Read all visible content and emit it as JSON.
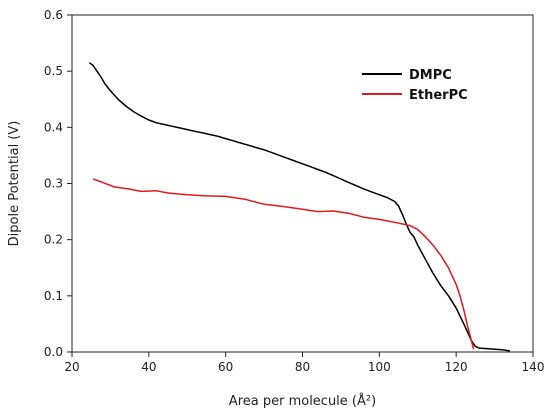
{
  "chart_data": {
    "type": "line",
    "xlabel": "Area per molecule (Å²)",
    "ylabel": "Dipole Potential (V)",
    "xlim": [
      20,
      140
    ],
    "ylim": [
      0,
      0.6
    ],
    "xticks": [
      20,
      40,
      60,
      80,
      100,
      120,
      140
    ],
    "yticks": [
      0.0,
      0.1,
      0.2,
      0.3,
      0.4,
      0.5,
      0.6
    ],
    "xtick_labels": [
      "20",
      "40",
      "60",
      "80",
      "100",
      "120",
      "140"
    ],
    "ytick_labels": [
      "0.0",
      "0.1",
      "0.2",
      "0.3",
      "0.4",
      "0.5",
      "0.6"
    ],
    "grid": false,
    "legend_position": "top-right",
    "series": [
      {
        "name": "DMPC",
        "color": "#000000",
        "points": [
          [
            24.5,
            0.515
          ],
          [
            25.5,
            0.51
          ],
          [
            26.5,
            0.5
          ],
          [
            27.5,
            0.49
          ],
          [
            28.5,
            0.478
          ],
          [
            30,
            0.465
          ],
          [
            32,
            0.45
          ],
          [
            34,
            0.438
          ],
          [
            36,
            0.428
          ],
          [
            38,
            0.42
          ],
          [
            40,
            0.413
          ],
          [
            42,
            0.408
          ],
          [
            44,
            0.405
          ],
          [
            46,
            0.402
          ],
          [
            48,
            0.399
          ],
          [
            50,
            0.396
          ],
          [
            52,
            0.393
          ],
          [
            54,
            0.39
          ],
          [
            56,
            0.387
          ],
          [
            58,
            0.384
          ],
          [
            60,
            0.38
          ],
          [
            62,
            0.376
          ],
          [
            64,
            0.372
          ],
          [
            66,
            0.368
          ],
          [
            68,
            0.364
          ],
          [
            70,
            0.36
          ],
          [
            72,
            0.355
          ],
          [
            74,
            0.35
          ],
          [
            76,
            0.345
          ],
          [
            78,
            0.34
          ],
          [
            80,
            0.335
          ],
          [
            82,
            0.33
          ],
          [
            84,
            0.325
          ],
          [
            86,
            0.32
          ],
          [
            88,
            0.314
          ],
          [
            90,
            0.308
          ],
          [
            92,
            0.302
          ],
          [
            94,
            0.296
          ],
          [
            96,
            0.29
          ],
          [
            98,
            0.285
          ],
          [
            100,
            0.28
          ],
          [
            102,
            0.275
          ],
          [
            104,
            0.268
          ],
          [
            105,
            0.26
          ],
          [
            106,
            0.245
          ],
          [
            107,
            0.228
          ],
          [
            108,
            0.213
          ],
          [
            109,
            0.205
          ],
          [
            110,
            0.19
          ],
          [
            112,
            0.165
          ],
          [
            114,
            0.14
          ],
          [
            116,
            0.118
          ],
          [
            118,
            0.1
          ],
          [
            120,
            0.078
          ],
          [
            122,
            0.05
          ],
          [
            123,
            0.035
          ],
          [
            124,
            0.02
          ],
          [
            125,
            0.01
          ],
          [
            126,
            0.007
          ],
          [
            128,
            0.006
          ],
          [
            130,
            0.005
          ],
          [
            132,
            0.004
          ],
          [
            134,
            0.002
          ]
        ]
      },
      {
        "name": "EtherPC",
        "color": "#e0191e",
        "points": [
          [
            25.5,
            0.308
          ],
          [
            28,
            0.302
          ],
          [
            31,
            0.294
          ],
          [
            35,
            0.29
          ],
          [
            38,
            0.286
          ],
          [
            42,
            0.287
          ],
          [
            45,
            0.283
          ],
          [
            50,
            0.28
          ],
          [
            55,
            0.278
          ],
          [
            60,
            0.277
          ],
          [
            65,
            0.272
          ],
          [
            70,
            0.263
          ],
          [
            75,
            0.259
          ],
          [
            80,
            0.254
          ],
          [
            84,
            0.25
          ],
          [
            88,
            0.251
          ],
          [
            92,
            0.247
          ],
          [
            96,
            0.24
          ],
          [
            100,
            0.236
          ],
          [
            104,
            0.231
          ],
          [
            108,
            0.225
          ],
          [
            110,
            0.218
          ],
          [
            112,
            0.205
          ],
          [
            114,
            0.19
          ],
          [
            116,
            0.172
          ],
          [
            118,
            0.15
          ],
          [
            119,
            0.135
          ],
          [
            120,
            0.12
          ],
          [
            121,
            0.1
          ],
          [
            122,
            0.075
          ],
          [
            123,
            0.045
          ],
          [
            124,
            0.02
          ],
          [
            124.5,
            0.005
          ]
        ]
      }
    ]
  }
}
